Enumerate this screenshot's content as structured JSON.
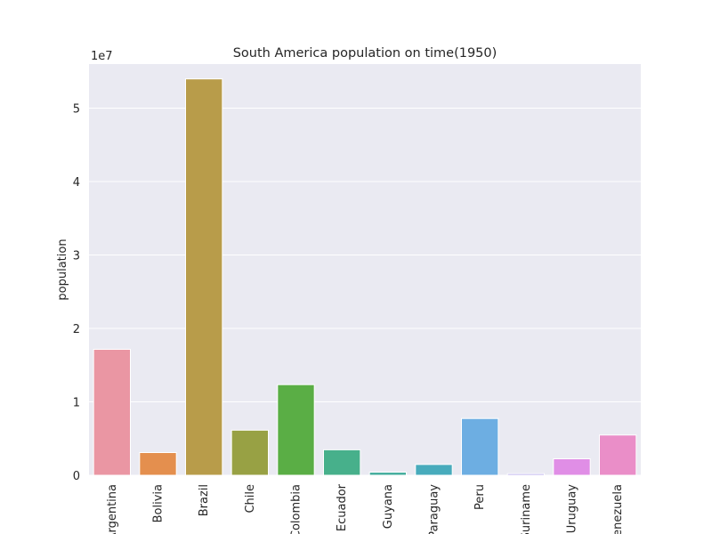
{
  "chart_data": {
    "type": "bar",
    "title": "South America population on time(1950)",
    "xlabel": "",
    "ylabel": "population",
    "y_offset_label": "1e7",
    "ylim": [
      0,
      56000000
    ],
    "yticks": [
      0,
      10000000,
      20000000,
      30000000,
      40000000,
      50000000
    ],
    "ytick_labels": [
      "0",
      "1",
      "2",
      "3",
      "4",
      "5"
    ],
    "grid": true,
    "legend": "none",
    "categories": [
      "Argentina",
      "Bolivia",
      "Brazil",
      "Chile",
      "Colombia",
      "Ecuador",
      "Guyana",
      "Paraguay",
      "Peru",
      "Suriname",
      "Uruguay",
      "Venezuela"
    ],
    "values": [
      17150000,
      3090000,
      53980000,
      6140000,
      12340000,
      3470000,
      420000,
      1470000,
      7730000,
      220000,
      2240000,
      5480000
    ],
    "colors": [
      "#ea96a3",
      "#e48f4e",
      "#b89c4a",
      "#98a144",
      "#5aae45",
      "#47b08b",
      "#45ad9e",
      "#48abbc",
      "#6daee2",
      "#b6a8eb",
      "#e08ee6",
      "#ea8ec8"
    ]
  }
}
